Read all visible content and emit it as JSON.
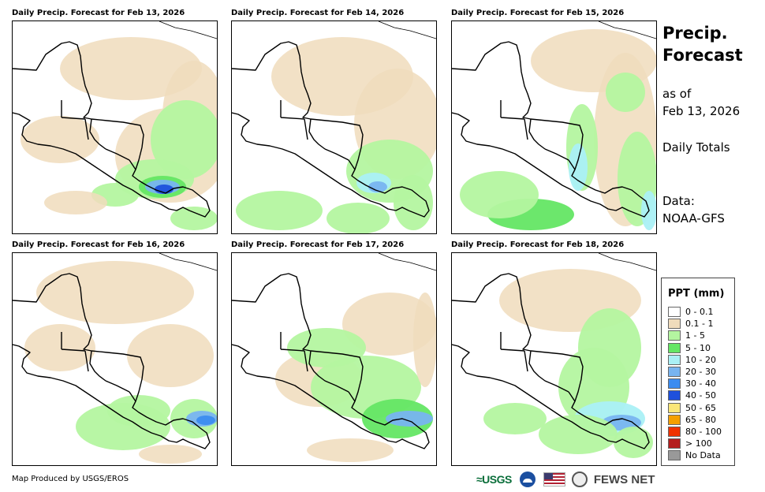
{
  "panels": [
    {
      "title": "Daily Precip. Forecast for Feb 13, 2026"
    },
    {
      "title": "Daily Precip. Forecast for Feb 14, 2026"
    },
    {
      "title": "Daily Precip. Forecast for Feb 15, 2026"
    },
    {
      "title": "Daily Precip. Forecast for Feb 16, 2026"
    },
    {
      "title": "Daily Precip. Forecast for Feb 17, 2026"
    },
    {
      "title": "Daily Precip. Forecast for Feb 18, 2026"
    }
  ],
  "sidebar": {
    "title_line1": "Precip.",
    "title_line2": "Forecast",
    "as_of_label": "as of",
    "as_of_date": "Feb 13, 2026",
    "totals": "Daily Totals",
    "data_label": "Data:",
    "data_source": "NOAA-GFS"
  },
  "legend": {
    "title": "PPT (mm)",
    "items": [
      {
        "label": "0 - 0.1",
        "color": "#ffffff"
      },
      {
        "label": "0.1 - 1",
        "color": "#f0dcbc"
      },
      {
        "label": "1 - 5",
        "color": "#b4f5a0"
      },
      {
        "label": "5 - 10",
        "color": "#64e664"
      },
      {
        "label": "10 - 20",
        "color": "#aaf0f5"
      },
      {
        "label": "20 - 30",
        "color": "#78b4f0"
      },
      {
        "label": "30 - 40",
        "color": "#3c8cf0"
      },
      {
        "label": "40 - 50",
        "color": "#1e50dc"
      },
      {
        "label": "50 - 65",
        "color": "#fae678"
      },
      {
        "label": "65 - 80",
        "color": "#f5a000"
      },
      {
        "label": "80 - 100",
        "color": "#f03200"
      },
      {
        "label": "> 100",
        "color": "#b41e1e"
      },
      {
        "label": "No Data",
        "color": "#999999"
      }
    ]
  },
  "footer": {
    "credit": "Map Produced by USGS/EROS",
    "usgs": "≈USGS",
    "fews": "FEWS NET"
  }
}
